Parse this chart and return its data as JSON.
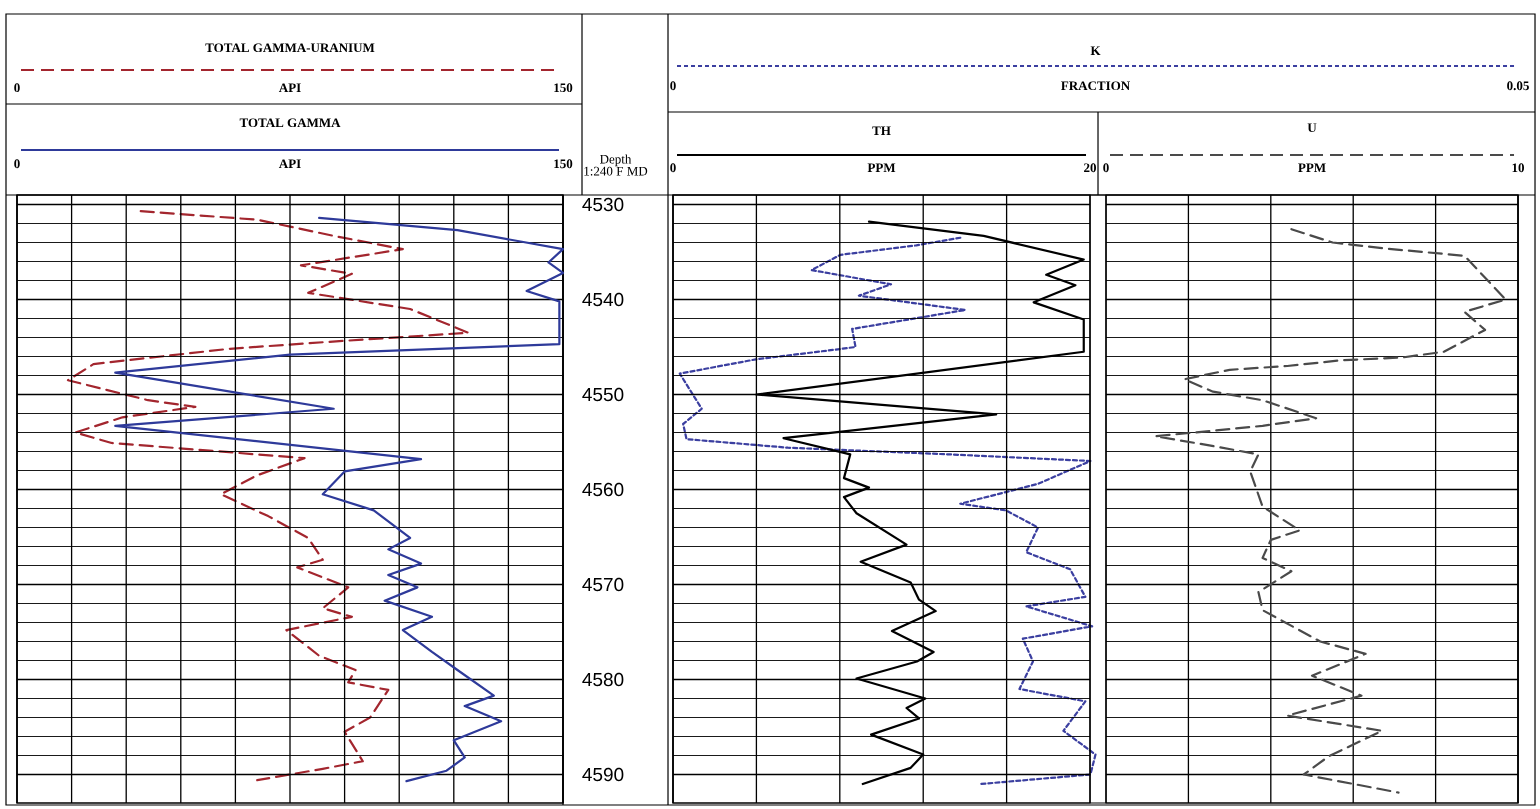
{
  "chart_data": [
    {
      "type": "line",
      "xlabel": "API",
      "xlim": [
        0,
        150
      ],
      "xticks": [
        0,
        150
      ],
      "ylim": [
        4593,
        4529
      ],
      "tick_labels": "x",
      "legend": "top",
      "series": [
        {
          "name": "TOTAL GAMMA-URANIUM",
          "color": "#a3262e",
          "line_style": "dashed",
          "x": [
            34,
            66,
            87,
            106,
            78,
            92,
            80,
            108,
            124,
            84,
            58,
            21,
            14,
            36,
            49,
            29,
            16,
            26,
            79,
            66,
            56,
            69,
            80,
            84,
            77,
            91,
            84,
            92,
            74,
            83,
            93,
            91,
            102,
            97,
            90,
            95,
            84,
            66
          ],
          "values": [
            4530.7,
            4531.6,
            4533.3,
            4534.7,
            4536.4,
            4537.3,
            4539.3,
            4541,
            4543.5,
            4544.5,
            4545.2,
            4546.8,
            4548.5,
            4550.6,
            4551.3,
            4552.4,
            4554,
            4555.1,
            4556.7,
            4558.5,
            4560.5,
            4562.8,
            4565.1,
            4567.4,
            4568.2,
            4570.3,
            4572.5,
            4573.4,
            4574.8,
            4577.5,
            4579,
            4580.3,
            4581.1,
            4584,
            4585.5,
            4588.6,
            4589.4,
            4590.6
          ]
        }
      ]
    },
    {
      "type": "line",
      "ylabel": "Depth 1:240 F MD",
      "xlabel": "API",
      "xlim": [
        0,
        150
      ],
      "xticks": [
        0,
        {
          "value": 15,
          "label": null
        },
        {
          "value": 30,
          "label": null
        },
        {
          "value": 45,
          "label": null
        },
        {
          "value": 60,
          "label": null
        },
        {
          "value": 75,
          "label": null
        },
        {
          "value": 90,
          "label": null
        },
        {
          "value": 105,
          "label": null
        },
        {
          "value": 120,
          "label": null
        },
        {
          "value": 135,
          "label": null
        },
        150
      ],
      "ylim": [
        4593,
        4529
      ],
      "yticks": [
        4530,
        4540,
        4550,
        4560,
        4570,
        4580,
        4590
      ],
      "grid": true,
      "legend": "top",
      "series": [
        {
          "name": "TOTAL GAMMA",
          "color": "#2e3a9a",
          "line_style": "solid",
          "x": [
            83,
            121,
            150,
            146,
            150,
            140,
            149,
            149,
            75,
            27,
            87,
            27,
            111,
            90,
            84,
            98,
            108,
            102,
            111,
            102,
            110,
            101,
            114,
            106,
            114,
            121,
            131,
            123,
            133,
            120,
            123,
            118,
            107
          ],
          "values": [
            4531.4,
            4532.7,
            4534.7,
            4536.1,
            4537.2,
            4539.1,
            4540.2,
            4544.7,
            4545.8,
            4547.7,
            4551.5,
            4553.3,
            4556.8,
            4558.1,
            4560.5,
            4562.2,
            4565.1,
            4566.3,
            4567.8,
            4569,
            4570.3,
            4571.7,
            4573.4,
            4574.8,
            4577.1,
            4579,
            4581.7,
            4582.8,
            4584.4,
            4586.4,
            4588.2,
            4589.6,
            4590.7
          ]
        }
      ]
    },
    {
      "type": "line",
      "xlabel": "FRACTION",
      "xlim": [
        0,
        0.05
      ],
      "xticks": [
        0,
        0.05
      ],
      "ylim": [
        4593,
        4529
      ],
      "tick_labels": "x",
      "legend": "top",
      "series": [
        {
          "name": "K",
          "color": "#3b3fa0",
          "line_style": "dotted",
          "x": [
            0.017,
            0.0144,
            0.0099,
            0.0082,
            0.0129,
            0.011,
            0.0173,
            0.0106,
            0.0108,
            0.0095,
            0.0049,
            0.0004,
            0.0017,
            0.0006,
            0.0008,
            0.0068,
            0.0163,
            0.0247,
            0.0216,
            0.017,
            0.0197,
            0.0216,
            0.0209,
            0.0235,
            0.0244,
            0.0209,
            0.0248,
            0.0207,
            0.0213,
            0.0205,
            0.0244,
            0.0231,
            0.025,
            0.0247,
            0.0182
          ],
          "values": [
            4533.5,
            4534.3,
            4535.3,
            4536.9,
            4538.4,
            4539.6,
            4541.1,
            4543.1,
            4545,
            4545.3,
            4546.3,
            4547.8,
            4551.5,
            4553.1,
            4554.7,
            4555.6,
            4556.3,
            4557,
            4559.4,
            4561.5,
            4562.2,
            4564,
            4566.6,
            4568.4,
            4571.3,
            4572.3,
            4574.4,
            4575.7,
            4578.1,
            4581,
            4582.3,
            4585.4,
            4587.9,
            4590,
            4591
          ]
        }
      ]
    },
    {
      "type": "line",
      "xlabel": "PPM",
      "xlim": [
        0,
        20
      ],
      "xticks": [
        0,
        {
          "value": 4,
          "label": null
        },
        {
          "value": 8,
          "label": null
        },
        {
          "value": 12,
          "label": null
        },
        {
          "value": 16,
          "label": null
        },
        20
      ],
      "ylim": [
        4593,
        4529
      ],
      "yticks": [
        4530,
        4540,
        4550,
        4560,
        4570,
        4580,
        4590
      ],
      "tick_labels": "x",
      "grid": true,
      "legend": "top",
      "series": [
        {
          "name": "TH",
          "color": "#000000",
          "line_style": "solid",
          "x": [
            9.4,
            14.9,
            19.7,
            17.9,
            19.3,
            17.3,
            19.7,
            19.7,
            4,
            15.5,
            5.3,
            8.5,
            8.2,
            9.4,
            8.2,
            8.8,
            11.2,
            9,
            11.4,
            11.8,
            12.6,
            10.5,
            12.5,
            11.7,
            8.8,
            12.1,
            11.2,
            11.8,
            9.5,
            12,
            11.4,
            9.1
          ],
          "values": [
            4531.8,
            4533.3,
            4535.8,
            4537.4,
            4538.5,
            4540.3,
            4542.1,
            4545.5,
            4550,
            4552.1,
            4554.6,
            4556.3,
            4558.8,
            4559.8,
            4560.8,
            4562.5,
            4565.8,
            4567.6,
            4569.8,
            4571.6,
            4572.8,
            4574.9,
            4577.1,
            4578.1,
            4579.9,
            4582,
            4583,
            4584.1,
            4585.8,
            4587.9,
            4589.3,
            4591
          ]
        }
      ]
    },
    {
      "type": "line",
      "xlabel": "PPM",
      "xlim": [
        0,
        10
      ],
      "xticks": [
        0,
        {
          "value": 2,
          "label": null
        },
        {
          "value": 4,
          "label": null
        },
        {
          "value": 6,
          "label": null
        },
        {
          "value": 8,
          "label": null
        },
        10
      ],
      "ylim": [
        4593,
        4529
      ],
      "yticks": [
        4530,
        4540,
        4550,
        4560,
        4570,
        4580,
        4590
      ],
      "tick_labels": "x",
      "grid": true,
      "legend": "top",
      "series": [
        {
          "name": "U",
          "color": "#4a4a4a",
          "line_style": "dashed",
          "x": [
            4.5,
            5.5,
            6.7,
            8.7,
            9.7,
            8.7,
            9.2,
            8.2,
            7.2,
            5.7,
            4.4,
            3,
            1.9,
            2.6,
            3.8,
            5.1,
            3.8,
            1.2,
            2.3,
            3.7,
            3.5,
            3.8,
            4.7,
            4,
            3.8,
            4.5,
            3.7,
            3.8,
            5.2,
            6.3,
            5,
            6.2,
            4.4,
            6.7,
            5.4,
            4.8,
            7.1
          ],
          "values": [
            4532.6,
            4534,
            4534.6,
            4535.4,
            4540,
            4541.3,
            4543.2,
            4545.5,
            4546.1,
            4546.4,
            4547,
            4547.4,
            4548.4,
            4549.7,
            4550.6,
            4552.5,
            4553.3,
            4554.4,
            4555.2,
            4556.3,
            4558.1,
            4561.8,
            4564.3,
            4565.3,
            4567.2,
            4568.6,
            4570.8,
            4572.7,
            4576,
            4577.3,
            4579.6,
            4581.7,
            4583.8,
            4585.4,
            4588.1,
            4590,
            4591.9
          ]
        }
      ]
    }
  ]
}
